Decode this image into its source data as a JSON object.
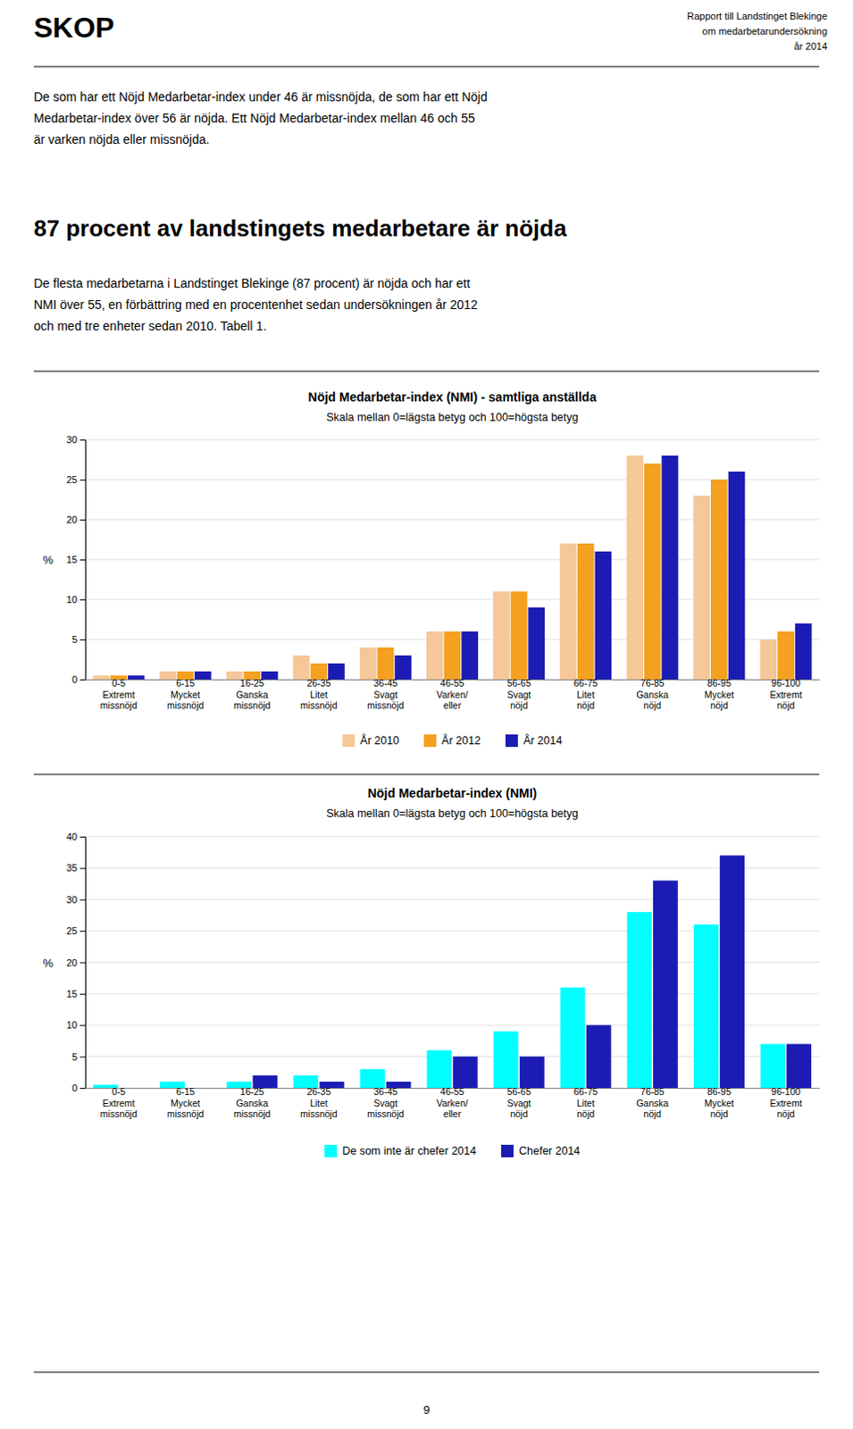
{
  "page": {
    "header": "SKOP",
    "header_right": [
      "Rapport till Landstinget Blekinge",
      "om medarbetarundersökning",
      "år 2014"
    ],
    "body_text_1": "De som har ett Nöjd Medarbetar-index under 46 är missnöjda, de som har ett Nöjd\nMedarbetar-index över 56 är nöjda. Ett Nöjd Medarbetar-index mellan 46 och 55\när varken nöjda eller missnöjda.",
    "heading": "87 procent av landstingets medarbetare är nöjda",
    "body_text_2": "De flesta medarbetarna i Landstinget Blekinge (87 procent) är nöjda och har ett\nNMI över 55, en förbättring med en procentenhet sedan undersökningen år 2012\noch med tre enheter sedan 2010. Tabell 1.",
    "page_number": "9"
  },
  "chart_data": [
    {
      "type": "bar",
      "title": "Nöjd Medarbetar-index (NMI) - samtliga anställda",
      "subtitle": "Skala mellan 0=lägsta betyg och 100=högsta betyg",
      "ylabel": "%",
      "categories": [
        "0-5\nExtremt\nmissnöjd",
        "6-15\nMycket\nmissnöjd",
        "16-25\nGanska\nmissnöjd",
        "26-35\nLitet\nmissnöjd",
        "36-45\nSvagt\nmissnöjd",
        "46-55\nVarken/\neller",
        "56-65\nSvagt\nnöjd",
        "66-75\nLitet\nnöjd",
        "76-85\nGanska\nnöjd",
        "86-95\nMycket\nnöjd",
        "96-100\nExtremt\nnöjd"
      ],
      "series": [
        {
          "name": "År 2010",
          "color": "#F5C799",
          "values": [
            0.5,
            1.0,
            1.0,
            3.0,
            4.0,
            6.0,
            11.0,
            17.0,
            28.0,
            23.0,
            5.0
          ]
        },
        {
          "name": "År 2012",
          "color": "#F4A020",
          "values": [
            0.5,
            1.0,
            1.0,
            2.0,
            4.0,
            6.0,
            11.0,
            17.0,
            27.0,
            25.0,
            6.0
          ]
        },
        {
          "name": "År 2014",
          "color": "#1C1CB4",
          "values": [
            0.5,
            1.0,
            1.0,
            2.0,
            3.0,
            6.0,
            9.0,
            16.0,
            28.0,
            26.0,
            7.0
          ]
        }
      ],
      "ylim": [
        0,
        30
      ],
      "yticks": [
        0,
        5,
        10,
        15,
        20,
        25,
        30
      ],
      "grid": true,
      "legend": "bottom"
    },
    {
      "type": "bar",
      "title": "Nöjd Medarbetar-index (NMI)",
      "subtitle": "Skala mellan 0=lägsta betyg och 100=högsta betyg",
      "ylabel": "%",
      "categories": [
        "0-5\nExtremt\nmissnöjd",
        "6-15\nMycket\nmissnöjd",
        "16-25\nGanska\nmissnöjd",
        "26-35\nLitet\nmissnöjd",
        "36-45\nSvagt\nmissnöjd",
        "46-55\nVarken/\neller",
        "56-65\nSvagt\nnöjd",
        "66-75\nLitet\nnöjd",
        "76-85\nGanska\nnöjd",
        "86-95\nMycket\nnöjd",
        "96-100\nExtremt\nnöjd"
      ],
      "series": [
        {
          "name": "De som inte är chefer 2014",
          "color": "#00FFFF",
          "values": [
            0.5,
            1.0,
            1.0,
            2.0,
            3.0,
            6.0,
            9.0,
            16.0,
            28.0,
            26.0,
            7.0
          ]
        },
        {
          "name": "Chefer 2014",
          "color": "#1C1CB4",
          "values": [
            0.0,
            0.0,
            2.0,
            1.0,
            1.0,
            5.0,
            5.0,
            10.0,
            33.0,
            37.0,
            7.0
          ]
        }
      ],
      "ylim": [
        0,
        40
      ],
      "yticks": [
        0,
        5,
        10,
        15,
        20,
        25,
        30,
        35,
        40
      ],
      "grid": true,
      "legend": "bottom"
    }
  ]
}
